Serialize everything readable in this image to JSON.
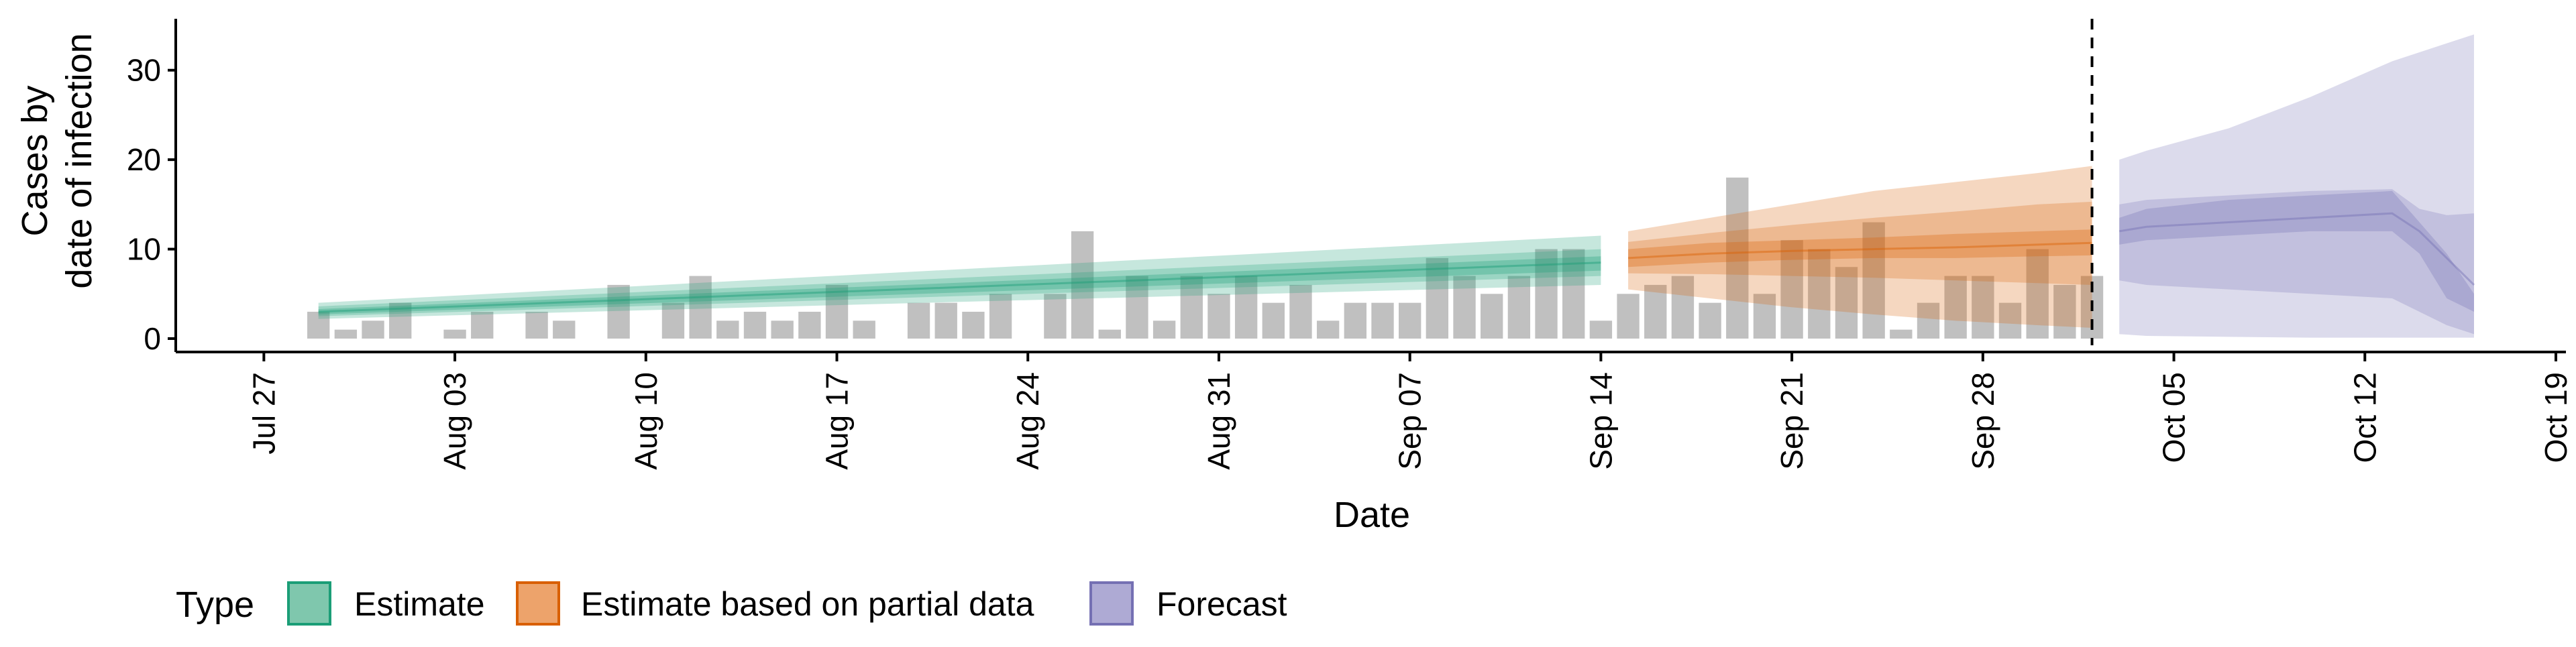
{
  "chart_data": {
    "type": "bar",
    "xlabel": "Date",
    "ylabel_lines": [
      "Cases by",
      "date of infection"
    ],
    "x_ticks": [
      "Jul 27",
      "Aug 03",
      "Aug 10",
      "Aug 17",
      "Aug 24",
      "Aug 31",
      "Sep 07",
      "Sep 14",
      "Sep 21",
      "Sep 28",
      "Oct 05",
      "Oct 12",
      "Oct 19"
    ],
    "y_ticks": [
      0,
      10,
      20,
      30
    ],
    "xlim": [
      "2020-07-25",
      "2020-10-19"
    ],
    "ylim": [
      0,
      35
    ],
    "reference_line": {
      "date": "2020-10-02",
      "style": "dashed"
    },
    "legend": {
      "title": "Type",
      "position": "bottom-left",
      "items": [
        {
          "label": "Estimate",
          "fill": "#7fc7ad",
          "stroke": "#1b9e77"
        },
        {
          "label": "Estimate based on partial data",
          "fill": "#eda36b",
          "stroke": "#d95f02"
        },
        {
          "label": "Forecast",
          "fill": "#aeaad4",
          "stroke": "#7570b3"
        }
      ]
    },
    "colors": {
      "bars": "#bdbdbd",
      "estimate": "#1b9e77",
      "partial": "#d95f02",
      "forecast": "#7570b3",
      "reference_line": "#000000"
    },
    "bars": {
      "start_date": "2020-07-29",
      "values": [
        3,
        1,
        2,
        4,
        0,
        1,
        3,
        0,
        3,
        2,
        0,
        6,
        0,
        4,
        7,
        2,
        3,
        2,
        3,
        6,
        2,
        0,
        4,
        4,
        3,
        5,
        0,
        5,
        12,
        1,
        7,
        2,
        7,
        5,
        7,
        4,
        6,
        2,
        4,
        4,
        4,
        9,
        7,
        5,
        7,
        10,
        10,
        2,
        5,
        6,
        7,
        4,
        18,
        5,
        11,
        10,
        8,
        13,
        1,
        4,
        7,
        7,
        4,
        10,
        6,
        7
      ]
    },
    "series": [
      {
        "name": "Estimate",
        "x_start": "2020-07-29",
        "x_end": "2020-09-14",
        "median": [
          3,
          8.5
        ],
        "inner": [
          [
            2.7,
            3.3
          ],
          [
            7.6,
            9.2
          ]
        ],
        "mid": [
          [
            2.5,
            3.6
          ],
          [
            7.0,
            10.0
          ]
        ],
        "outer": [
          [
            2.2,
            4.0
          ],
          [
            6.0,
            11.5
          ]
        ]
      },
      {
        "name": "Estimate based on partial data",
        "x": [
          "2020-09-15",
          "2020-09-18",
          "2020-09-21",
          "2020-09-24",
          "2020-09-27",
          "2020-09-30",
          "2020-10-02"
        ],
        "median": [
          9,
          9.5,
          9.8,
          10.0,
          10.2,
          10.5,
          10.7
        ],
        "inner": [
          [
            8.0,
            10.0
          ],
          [
            8.5,
            10.7
          ],
          [
            8.8,
            11.0
          ],
          [
            9.0,
            11.3
          ],
          [
            9.0,
            11.7
          ],
          [
            9.2,
            12.0
          ],
          [
            9.3,
            12.2
          ]
        ],
        "mid": [
          [
            7.3,
            10.8
          ],
          [
            7.2,
            11.8
          ],
          [
            7.0,
            12.7
          ],
          [
            6.8,
            13.5
          ],
          [
            6.5,
            14.2
          ],
          [
            6.2,
            15.0
          ],
          [
            6.0,
            15.3
          ]
        ],
        "outer": [
          [
            5.5,
            12.0
          ],
          [
            4.5,
            13.5
          ],
          [
            3.5,
            15.0
          ],
          [
            2.7,
            16.5
          ],
          [
            2.0,
            17.5
          ],
          [
            1.5,
            18.5
          ],
          [
            1.2,
            19.3
          ]
        ]
      },
      {
        "name": "Forecast",
        "x": [
          "2020-10-03",
          "2020-10-04",
          "2020-10-07",
          "2020-10-10",
          "2020-10-13",
          "2020-10-14",
          "2020-10-15",
          "2020-10-16"
        ],
        "median": [
          12,
          12.5,
          13,
          13.5,
          14,
          12,
          9,
          6
        ],
        "inner": [
          [
            10.5,
            13.5
          ],
          [
            11.0,
            14.5
          ],
          [
            11.5,
            15.5
          ],
          [
            12.0,
            16.0
          ],
          [
            12.0,
            16.5
          ],
          [
            9.5,
            13.0
          ],
          [
            4.5,
            9.5
          ],
          [
            3.0,
            5.0
          ]
        ],
        "mid": [
          [
            6.5,
            15.0
          ],
          [
            6.0,
            15.5
          ],
          [
            5.5,
            16.0
          ],
          [
            5.0,
            16.5
          ],
          [
            4.5,
            16.7
          ],
          [
            3.0,
            14.5
          ],
          [
            1.5,
            13.8
          ],
          [
            0.5,
            14.0
          ]
        ],
        "outer": [
          [
            0.5,
            20.0
          ],
          [
            0.3,
            21.0
          ],
          [
            0.2,
            23.5
          ],
          [
            0.1,
            27.0
          ],
          [
            0.1,
            31.0
          ],
          [
            0.1,
            32.0
          ],
          [
            0.1,
            33.0
          ],
          [
            0.1,
            34.0
          ]
        ]
      }
    ]
  }
}
